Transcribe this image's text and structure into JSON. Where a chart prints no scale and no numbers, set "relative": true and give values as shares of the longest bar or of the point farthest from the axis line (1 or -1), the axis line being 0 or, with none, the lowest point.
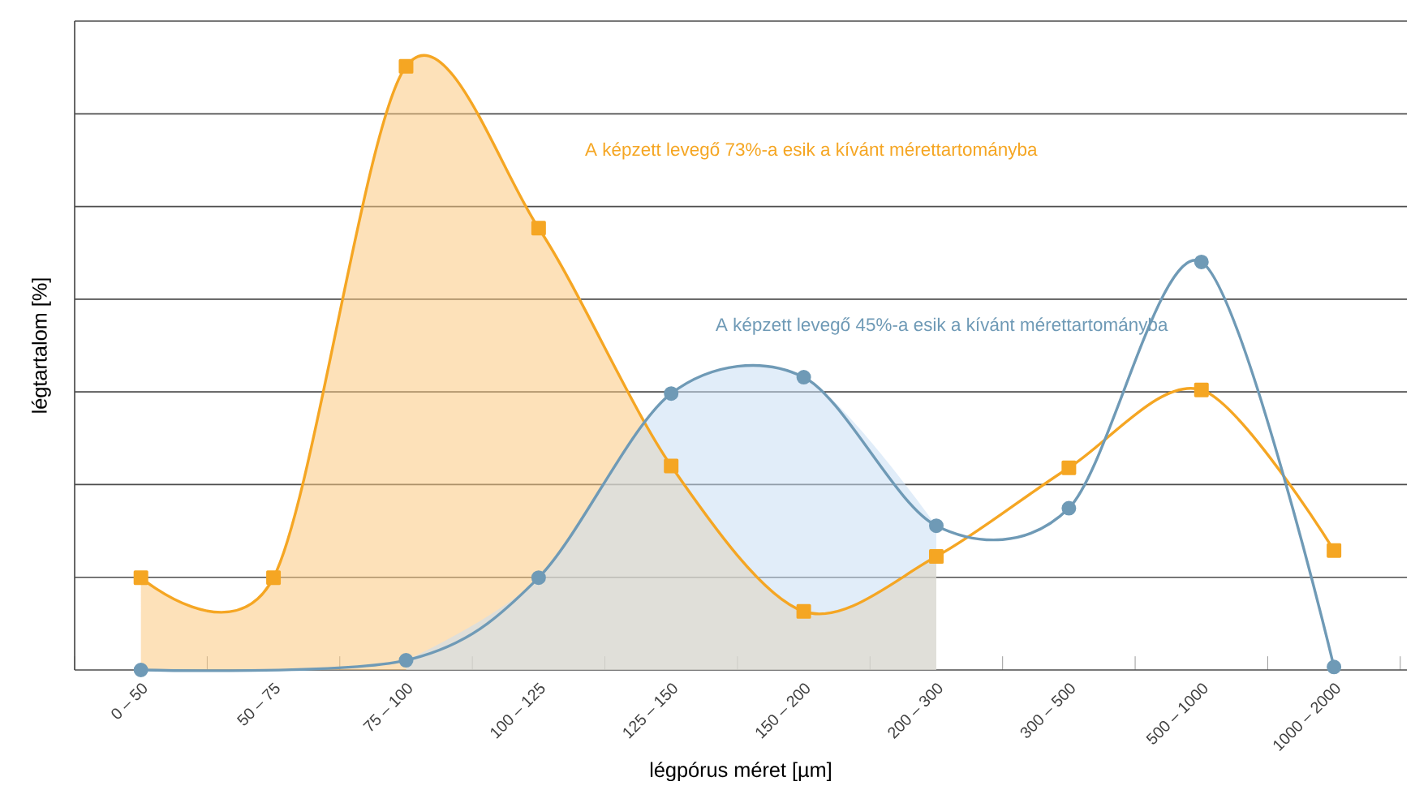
{
  "chart_data": {
    "type": "line",
    "relative": true,
    "xlabel": "légpórus méret [µm]",
    "ylabel": "légtartalom [%]",
    "categories": [
      "0 – 50",
      "50 – 75",
      "75 – 100",
      "100 – 125",
      "125 – 150",
      "150 – 200",
      "200 – 300",
      "300 – 500",
      "500 – 1000",
      "1000 – 2000"
    ],
    "series": [
      {
        "type": "area",
        "color": "#fbc97f",
        "marker": "none",
        "values": [
          0.153,
          0.153,
          1,
          0.732,
          0.338,
          0.097,
          0.188,
          null,
          null,
          null
        ]
      },
      {
        "type": "area",
        "color": "#c9def4",
        "marker": "none",
        "values": [
          null,
          null,
          0.016,
          0.153,
          0.458,
          0.485,
          0.239,
          null,
          null,
          null
        ]
      },
      {
        "color": "#f5a623",
        "marker": "square",
        "values": [
          0.153,
          0.153,
          1,
          0.732,
          0.338,
          0.097,
          0.188,
          0.335,
          0.464,
          0.198
        ]
      },
      {
        "color": "#6f9ab6",
        "marker": "circle",
        "values": [
          0,
          null,
          0.016,
          0.153,
          0.458,
          0.485,
          0.239,
          0.268,
          0.676,
          0.005
        ]
      }
    ],
    "annotations": [
      "A képzett levegő 73%-a esik a kívánt  mérettartományba",
      "A képzett levegő 45%-a esik a kívánt mérettartományba"
    ],
    "grid": "y"
  }
}
